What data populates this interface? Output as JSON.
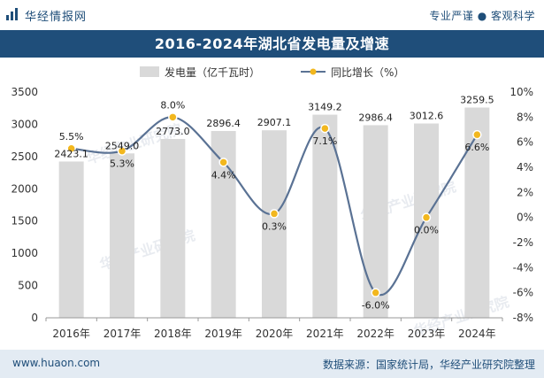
{
  "header": {
    "site_name": "华经情报网",
    "tagline": "专业严谨 ● 客观科学"
  },
  "footer": {
    "url": "www.huaon.com",
    "source": "数据来源：国家统计局，华经产业研究院整理"
  },
  "watermark": "华经产业研究院",
  "colors": {
    "bar": "#d9d9d9",
    "line": "#5a7294",
    "marker": "#f2b71e",
    "title_bg": "#1f4e7a"
  },
  "chart_data": {
    "type": "bar",
    "title": "2016-2024年湖北省发电量及增速",
    "categories": [
      "2016年",
      "2017年",
      "2018年",
      "2019年",
      "2020年",
      "2021年",
      "2022年",
      "2023年",
      "2024年"
    ],
    "series": [
      {
        "name": "发电量（亿千瓦时）",
        "type": "bar",
        "axis": "left",
        "values": [
          2423.1,
          2549.0,
          2773.0,
          2896.4,
          2907.1,
          3149.2,
          2986.4,
          3012.6,
          3259.5
        ],
        "labels": [
          "2423.1",
          "2549.0",
          "2773.0",
          "2896.4",
          "2907.1",
          "3149.2",
          "2986.4",
          "3012.6",
          "3259.5"
        ]
      },
      {
        "name": "同比增长（%）",
        "type": "line",
        "axis": "right",
        "values": [
          5.5,
          5.3,
          8.0,
          4.4,
          0.3,
          7.1,
          -6.0,
          0.0,
          6.6
        ],
        "labels": [
          "5.5%",
          "5.3%",
          "8.0%",
          "4.4%",
          "0.3%",
          "7.1%",
          "-6.0%",
          "0.0%",
          "6.6%"
        ]
      }
    ],
    "y_left": {
      "min": 0,
      "max": 3500,
      "ticks": [
        "0",
        "500",
        "1000",
        "1500",
        "2000",
        "2500",
        "3000",
        "3500"
      ]
    },
    "y_right": {
      "min": -8,
      "max": 10,
      "ticks": [
        "-8%",
        "-6%",
        "-4%",
        "-2%",
        "0%",
        "2%",
        "4%",
        "6%",
        "8%",
        "10%"
      ]
    },
    "legend_position": "top-center",
    "grid": false
  }
}
